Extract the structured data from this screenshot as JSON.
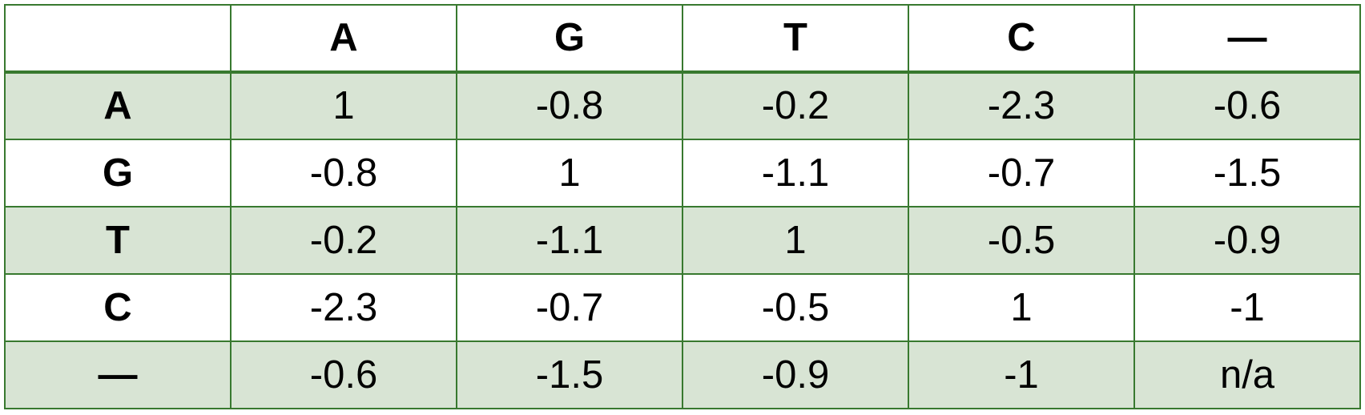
{
  "table": {
    "corner": "",
    "column_headers": [
      "A",
      "G",
      "T",
      "C",
      "—"
    ],
    "rows": [
      {
        "header": "A",
        "cells": [
          "1",
          "-0.8",
          "-0.2",
          "-2.3",
          "-0.6"
        ]
      },
      {
        "header": "G",
        "cells": [
          "-0.8",
          "1",
          "-1.1",
          "-0.7",
          "-1.5"
        ]
      },
      {
        "header": "T",
        "cells": [
          "-0.2",
          "-1.1",
          "1",
          "-0.5",
          "-0.9"
        ]
      },
      {
        "header": "C",
        "cells": [
          "-2.3",
          "-0.7",
          "-0.5",
          "1",
          "-1"
        ]
      },
      {
        "header": "—",
        "cells": [
          "-0.6",
          "-1.5",
          "-0.9",
          "-1",
          "n/a"
        ]
      }
    ]
  },
  "colors": {
    "border": "#38792f",
    "shaded_row": "#d8e4d4",
    "text": "#000000"
  }
}
